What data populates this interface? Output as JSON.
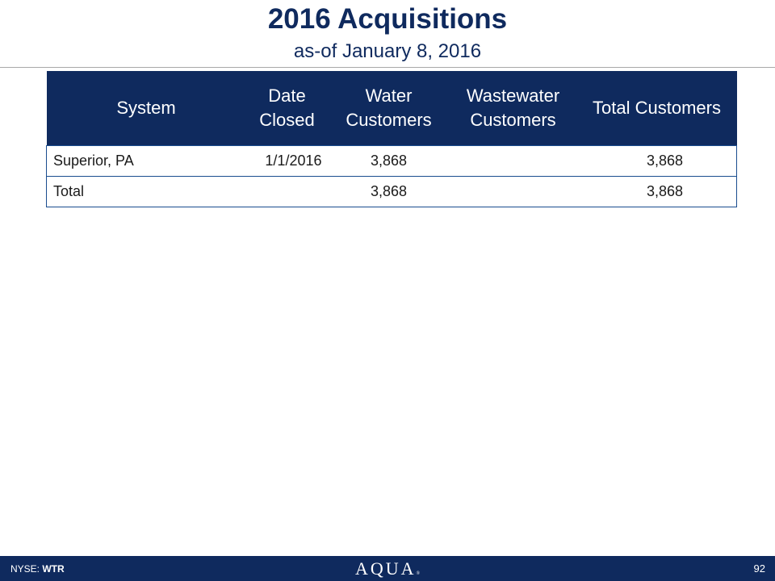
{
  "slide": {
    "title": "2016 Acquisitions",
    "subtitle": "as-of January 8, 2016"
  },
  "table": {
    "headers": {
      "system": "System",
      "date_line1": "Date",
      "date_line2": "Closed",
      "water_line1": "Water",
      "water_line2": "Customers",
      "waste_line1": "Wastewater",
      "waste_line2": "Customers",
      "total": "Total Customers"
    },
    "rows": [
      {
        "system": "Superior, PA",
        "date_closed": "1/1/2016",
        "water": "3,868",
        "wastewater": "",
        "total": "3,868"
      },
      {
        "system": "Total",
        "date_closed": "",
        "water": "3,868",
        "wastewater": "",
        "total": "3,868"
      }
    ]
  },
  "footer": {
    "exchange": "NYSE:",
    "ticker": "WTR",
    "logo": "AQUA",
    "trademark": "®",
    "page_number": "92"
  },
  "colors": {
    "brand_navy": "#0f2a5e",
    "row_border": "#1a4d8f"
  }
}
